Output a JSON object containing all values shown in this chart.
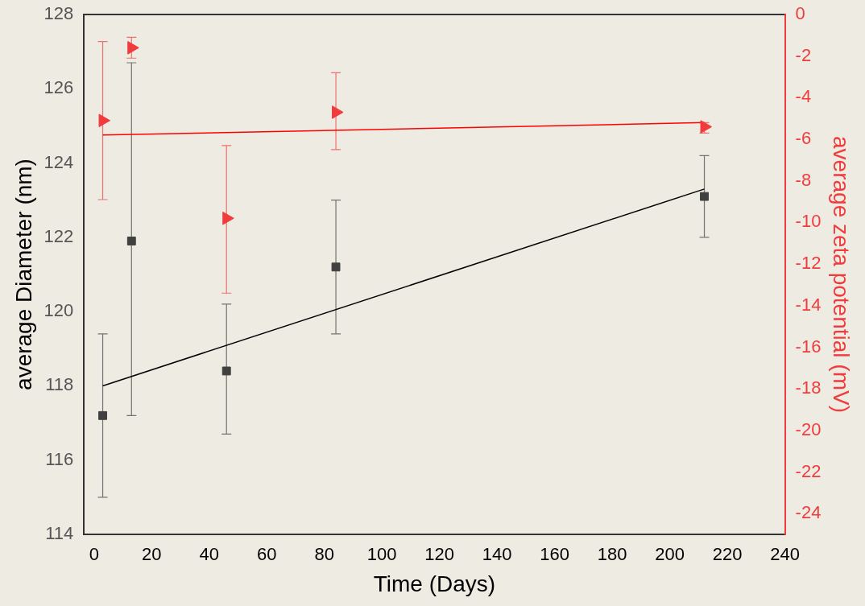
{
  "chart_data": {
    "type": "scatter",
    "xlabel": "Time (Days)",
    "ylabel": "average Diameter (nm)",
    "y2label": "average zeta potential (mV)",
    "xlim": [
      -3.5,
      240
    ],
    "xticks": [
      0,
      20,
      40,
      60,
      80,
      100,
      120,
      140,
      160,
      180,
      200,
      220,
      240
    ],
    "ylim": [
      114,
      128
    ],
    "yticks": [
      114,
      116,
      118,
      120,
      122,
      124,
      126,
      128
    ],
    "y2lim": [
      -25,
      0
    ],
    "y2ticks": [
      0,
      -2,
      -4,
      -6,
      -8,
      -10,
      -12,
      -14,
      -16,
      -18,
      -20,
      -22,
      -24
    ],
    "grid": false,
    "legend": false,
    "series": [
      {
        "type": "scatter",
        "color": "#404040",
        "marker": "square",
        "x": [
          3,
          13,
          46,
          84,
          212
        ],
        "values": [
          117.2,
          121.9,
          118.4,
          121.2,
          123.1
        ],
        "errors": [
          [
            115.0,
            119.4
          ],
          [
            117.2,
            126.7
          ],
          [
            116.7,
            120.2
          ],
          [
            119.4,
            123.0
          ],
          [
            122.0,
            124.2
          ]
        ]
      },
      {
        "type": "scatter",
        "axis": "y2",
        "color": "#f03c3c",
        "marker": "triangle",
        "x": [
          3,
          13,
          46,
          84,
          212
        ],
        "values": [
          -5.1,
          -1.6,
          -9.8,
          -4.7,
          -5.4
        ],
        "errors": [
          [
            -8.9,
            -1.3
          ],
          [
            -2.1,
            -1.1
          ],
          [
            -13.4,
            -6.3
          ],
          [
            -6.5,
            -2.8
          ],
          [
            -5.7,
            -5.2
          ]
        ]
      },
      {
        "type": "line",
        "color": "#000000",
        "marker": "none",
        "x": [
          3,
          212
        ],
        "values": [
          118.0,
          123.3
        ]
      },
      {
        "type": "line",
        "axis": "y2",
        "color": "#ff0000",
        "marker": "none",
        "x": [
          3,
          212
        ],
        "values": [
          -5.8,
          -5.2
        ]
      }
    ]
  }
}
